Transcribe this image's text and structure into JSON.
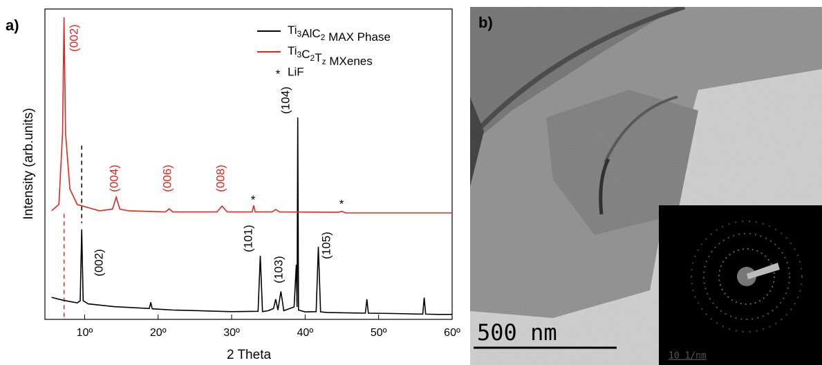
{
  "chart_data": {
    "type": "line",
    "panel_label": "a)",
    "x_label": "2 Theta",
    "y_label": "Intensity (arb.units)",
    "xlim": [
      4.6,
      60
    ],
    "ylim": [
      0,
      100
    ],
    "xticks": [
      {
        "value": 10,
        "label": "10º"
      },
      {
        "value": 20,
        "label": "20º"
      },
      {
        "value": 30,
        "label": "30º"
      },
      {
        "value": 40,
        "label": "40º"
      },
      {
        "value": 50,
        "label": "50º"
      },
      {
        "value": 60,
        "label": "60º"
      }
    ],
    "legend_position": "upper right",
    "series": [
      {
        "name": "Ti3AlC2 MAX Phase",
        "color": "#000000",
        "x": [
          5.5,
          7,
          9,
          9.4,
          9.6,
          9.8,
          10.5,
          14,
          18.8,
          19,
          19.2,
          22,
          25.5,
          27,
          30,
          33.6,
          33.9,
          34.2,
          35,
          35.7,
          36,
          36.3,
          36.7,
          37.1,
          38.5,
          38.8,
          38.9,
          39,
          39.1,
          40,
          41.5,
          41.8,
          42.1,
          43,
          48.2,
          48.4,
          48.6,
          52,
          56,
          56.2,
          56.4,
          58,
          60
        ],
        "values": [
          7.1,
          6.2,
          5.3,
          6,
          29,
          6,
          5,
          4.1,
          3.5,
          5.5,
          3.4,
          3,
          2.8,
          2.7,
          2.5,
          2.6,
          20.5,
          2.5,
          2.8,
          3.5,
          6.5,
          3,
          9,
          2.8,
          4,
          17.6,
          4,
          65,
          3,
          2.4,
          2.5,
          23.4,
          2.4,
          2.2,
          2,
          6.5,
          2,
          1.9,
          1.7,
          7,
          1.7,
          1.6,
          1.6
        ]
      },
      {
        "name": "Ti3C2Tz MXenes",
        "color": "#e8231b",
        "x": [
          5.5,
          6.5,
          7,
          7.2,
          7.4,
          8,
          9,
          12,
          13.8,
          14.3,
          14.8,
          16,
          21,
          21.5,
          22,
          28,
          28.7,
          29.4,
          32.8,
          33,
          33.2,
          35.5,
          36,
          36.5,
          44.5,
          45,
          45.5,
          60
        ],
        "values": [
          35,
          37,
          60,
          97.3,
          60,
          42,
          37,
          35,
          35.5,
          39.4,
          35.5,
          35,
          34.6,
          35.6,
          34.6,
          34.6,
          36.5,
          34.6,
          34.6,
          36.7,
          34.6,
          34.6,
          35.4,
          34.6,
          34.5,
          34.8,
          34.3,
          34.3
        ]
      }
    ],
    "legend_marker_entry": {
      "symbol": "*",
      "label": "LiF"
    },
    "annotations": [
      "(002)",
      "(004)",
      "(006)",
      "(008)",
      "*",
      "*",
      "(002)",
      "(101)",
      "(103)",
      "(104)",
      "(105)"
    ]
  },
  "micrograph": {
    "panel_label": "b)",
    "scale_bar": "500 nm",
    "inset_scale_bar": "10 1/nm"
  }
}
